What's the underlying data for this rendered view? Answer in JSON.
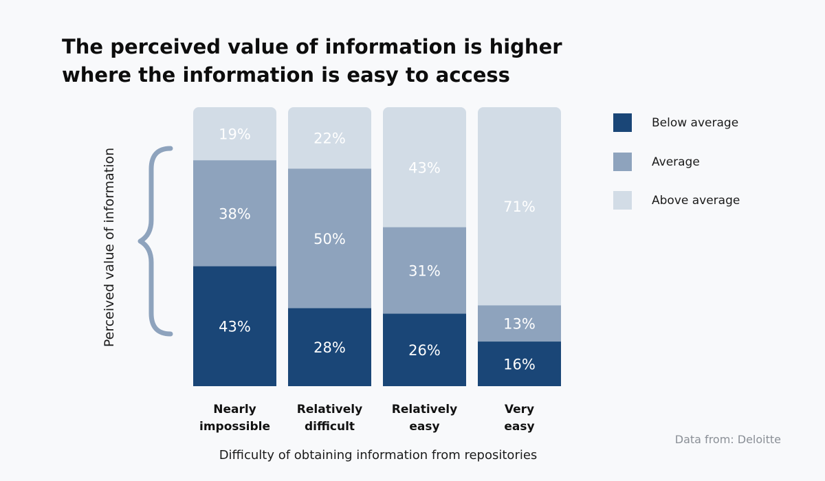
{
  "title_lines": [
    "The perceived value of information is higher",
    "where the information is easy to access"
  ],
  "source": "Data from: Deloitte",
  "colors": {
    "below_average": "#1a4677",
    "average": "#8ea3bd",
    "above_average": "#d2dce6",
    "bracket": "#8ea3bd"
  },
  "chart_data": {
    "type": "bar",
    "stacked": true,
    "categories": [
      [
        "Nearly",
        "impossible"
      ],
      [
        "Relatively",
        "difficult"
      ],
      [
        "Relatively",
        "easy"
      ],
      [
        "Very",
        "easy"
      ]
    ],
    "series": [
      {
        "name": "Below average",
        "values": [
          43,
          28,
          26,
          16
        ],
        "color_key": "below_average"
      },
      {
        "name": "Average",
        "values": [
          38,
          50,
          31,
          13
        ],
        "color_key": "average"
      },
      {
        "name": "Above average",
        "values": [
          19,
          22,
          43,
          71
        ],
        "color_key": "above_average"
      }
    ],
    "legend_order": [
      0,
      1,
      2
    ],
    "xlabel": "Difficulty of obtaining information from repositories",
    "ylabel": "Perceived value of information",
    "ylim": [
      0,
      100
    ],
    "value_suffix": "%",
    "legend_position": "right",
    "grid": false
  }
}
